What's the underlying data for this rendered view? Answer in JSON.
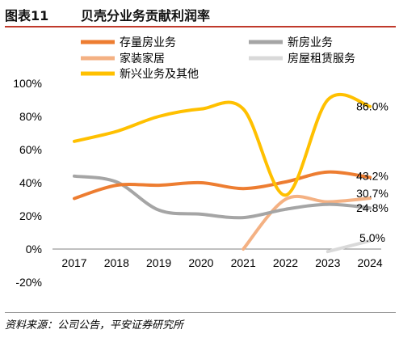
{
  "figure": {
    "number": "图表11",
    "title": "贝壳分业务贡献利润率"
  },
  "source": "资料来源：公司公告，平安证券研究所",
  "chart_data": {
    "type": "line",
    "title": "贝壳分业务贡献利润率",
    "xlabel": "",
    "ylabel": "",
    "categories": [
      "2017",
      "2018",
      "2019",
      "2020",
      "2021",
      "2022",
      "2023",
      "2024"
    ],
    "y_ticks": [
      "100%",
      "80%",
      "60%",
      "40%",
      "20%",
      "0%",
      "-20%"
    ],
    "ylim": [
      -20,
      100
    ],
    "grid": false,
    "legend_position": "top",
    "smooth": true,
    "series": [
      {
        "name": "存量房业务",
        "color": "#ed7d31",
        "values": [
          30.5,
          38.5,
          38.5,
          40.0,
          36.5,
          40.5,
          46.5,
          43.2
        ],
        "end_label": "43.2%"
      },
      {
        "name": "新房业务",
        "color": "#a5a5a5",
        "values": [
          44.0,
          40.5,
          23.5,
          21.0,
          19.0,
          24.0,
          27.0,
          24.8
        ],
        "end_label": "24.8%"
      },
      {
        "name": "家装家居",
        "color": "#f4b183",
        "values": [
          null,
          null,
          null,
          null,
          0.0,
          30.0,
          28.5,
          30.7
        ],
        "end_label": "30.7%"
      },
      {
        "name": "房屋租赁服务",
        "color": "#d9d9d9",
        "values": [
          null,
          null,
          null,
          null,
          null,
          null,
          -1.5,
          5.0
        ],
        "end_label": "5.0%"
      },
      {
        "name": "新兴业务及其他",
        "color": "#ffc000",
        "values": [
          65.0,
          71.0,
          80.0,
          84.5,
          84.5,
          32.5,
          90.0,
          86.0
        ],
        "end_label": "86.0%"
      }
    ]
  }
}
